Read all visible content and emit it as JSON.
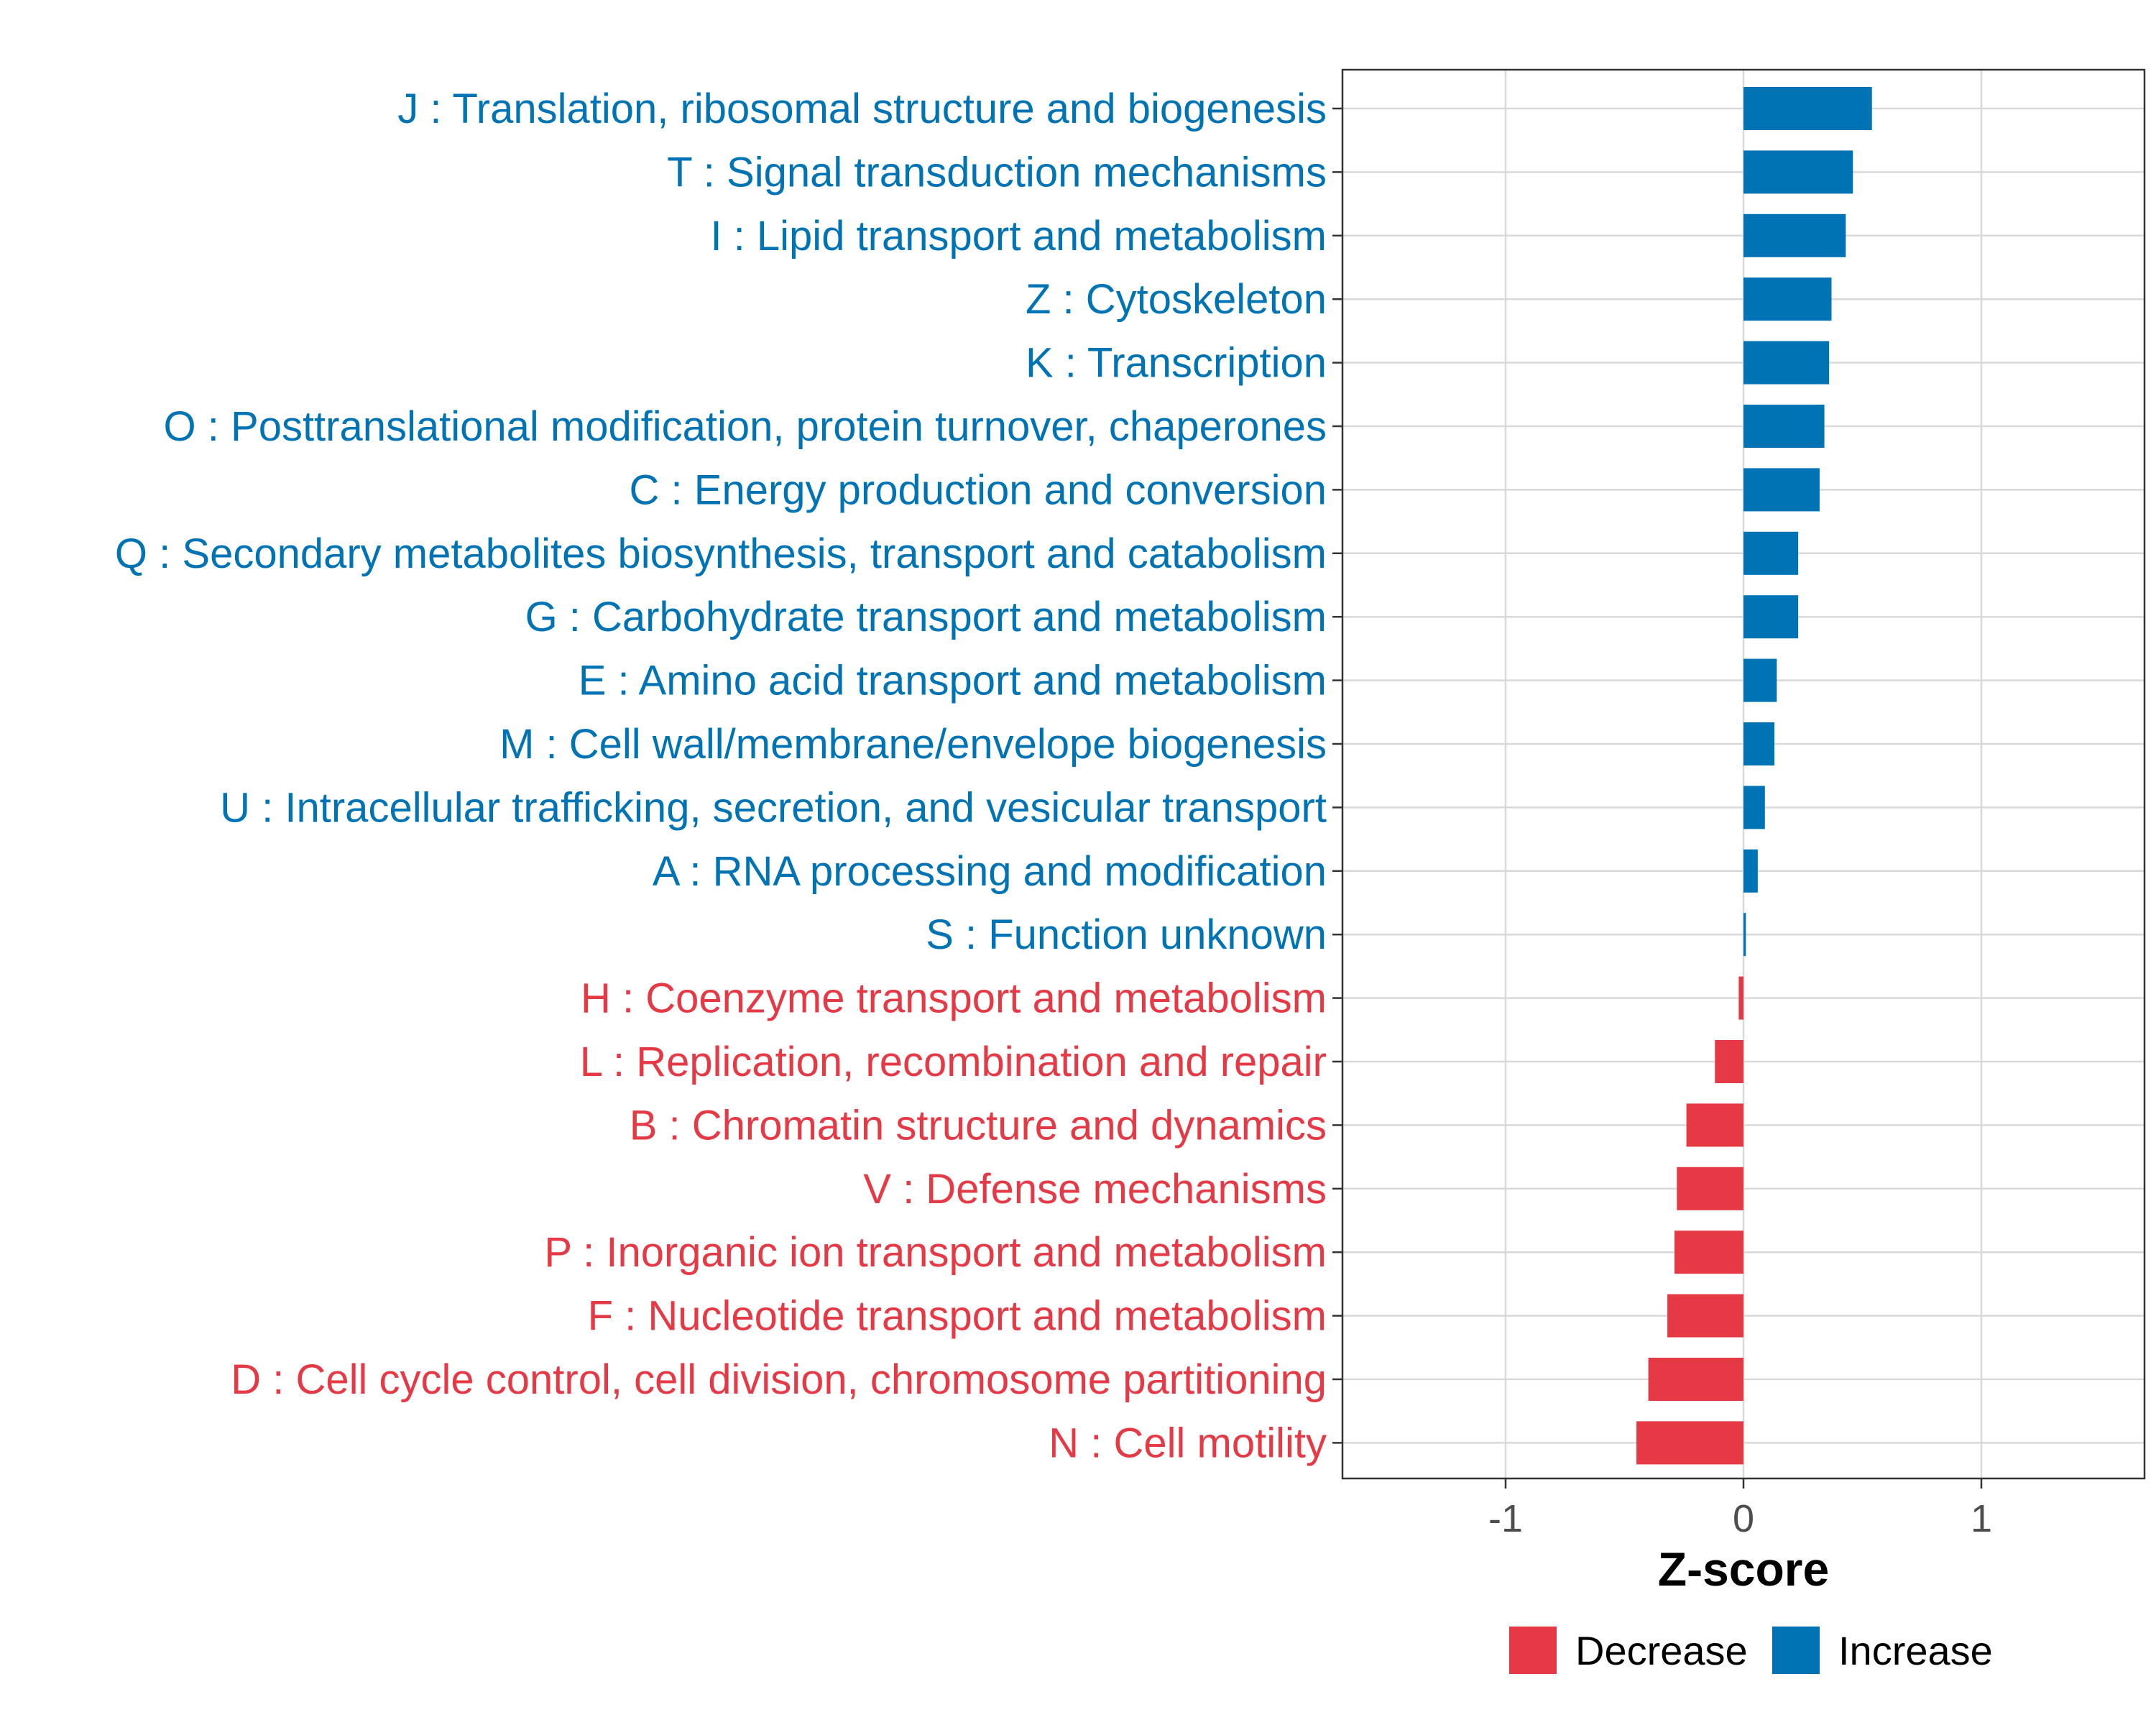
{
  "chart_data": {
    "type": "bar",
    "orientation": "horizontal",
    "title": "",
    "xlabel": "Z-score",
    "ylabel": "",
    "xlim": [
      -1.7,
      1.7
    ],
    "xticks": [
      -1,
      0,
      1
    ],
    "xtick_labels": [
      "-1",
      "0",
      "1"
    ],
    "grid": true,
    "legend_position": "bottom",
    "colors": {
      "Increase": "#0073b5",
      "Decrease": "#e63946"
    },
    "legend": [
      {
        "name": "Decrease",
        "color": "#e63946"
      },
      {
        "name": "Increase",
        "color": "#0073b5"
      }
    ],
    "categories": [
      "J : Translation, ribosomal structure and biogenesis",
      "T : Signal transduction mechanisms",
      "I : Lipid transport and metabolism",
      "Z : Cytoskeleton",
      "K : Transcription",
      "O : Posttranslational modification, protein turnover, chaperones",
      "C : Energy production and conversion",
      "Q : Secondary metabolites biosynthesis, transport and catabolism",
      "G : Carbohydrate transport and metabolism",
      "E : Amino acid transport and metabolism",
      "M : Cell wall/membrane/envelope biogenesis",
      "U : Intracellular trafficking, secretion, and vesicular transport",
      "A : RNA processing and modification",
      "S : Function unknown",
      "H : Coenzyme transport and metabolism",
      "L : Replication, recombination and repair",
      "B : Chromatin structure and dynamics",
      "V : Defense mechanisms",
      "P : Inorganic ion transport and metabolism",
      "F : Nucleotide transport and metabolism",
      "D : Cell cycle control, cell division, chromosome partitioning",
      "N : Cell motility"
    ],
    "values": [
      0.54,
      0.46,
      0.43,
      0.37,
      0.36,
      0.34,
      0.32,
      0.23,
      0.23,
      0.14,
      0.13,
      0.09,
      0.06,
      0.01,
      -0.02,
      -0.12,
      -0.24,
      -0.28,
      -0.29,
      -0.32,
      -0.4,
      -0.45
    ],
    "groups": [
      "Increase",
      "Increase",
      "Increase",
      "Increase",
      "Increase",
      "Increase",
      "Increase",
      "Increase",
      "Increase",
      "Increase",
      "Increase",
      "Increase",
      "Increase",
      "Increase",
      "Decrease",
      "Decrease",
      "Decrease",
      "Decrease",
      "Decrease",
      "Decrease",
      "Decrease",
      "Decrease"
    ]
  }
}
